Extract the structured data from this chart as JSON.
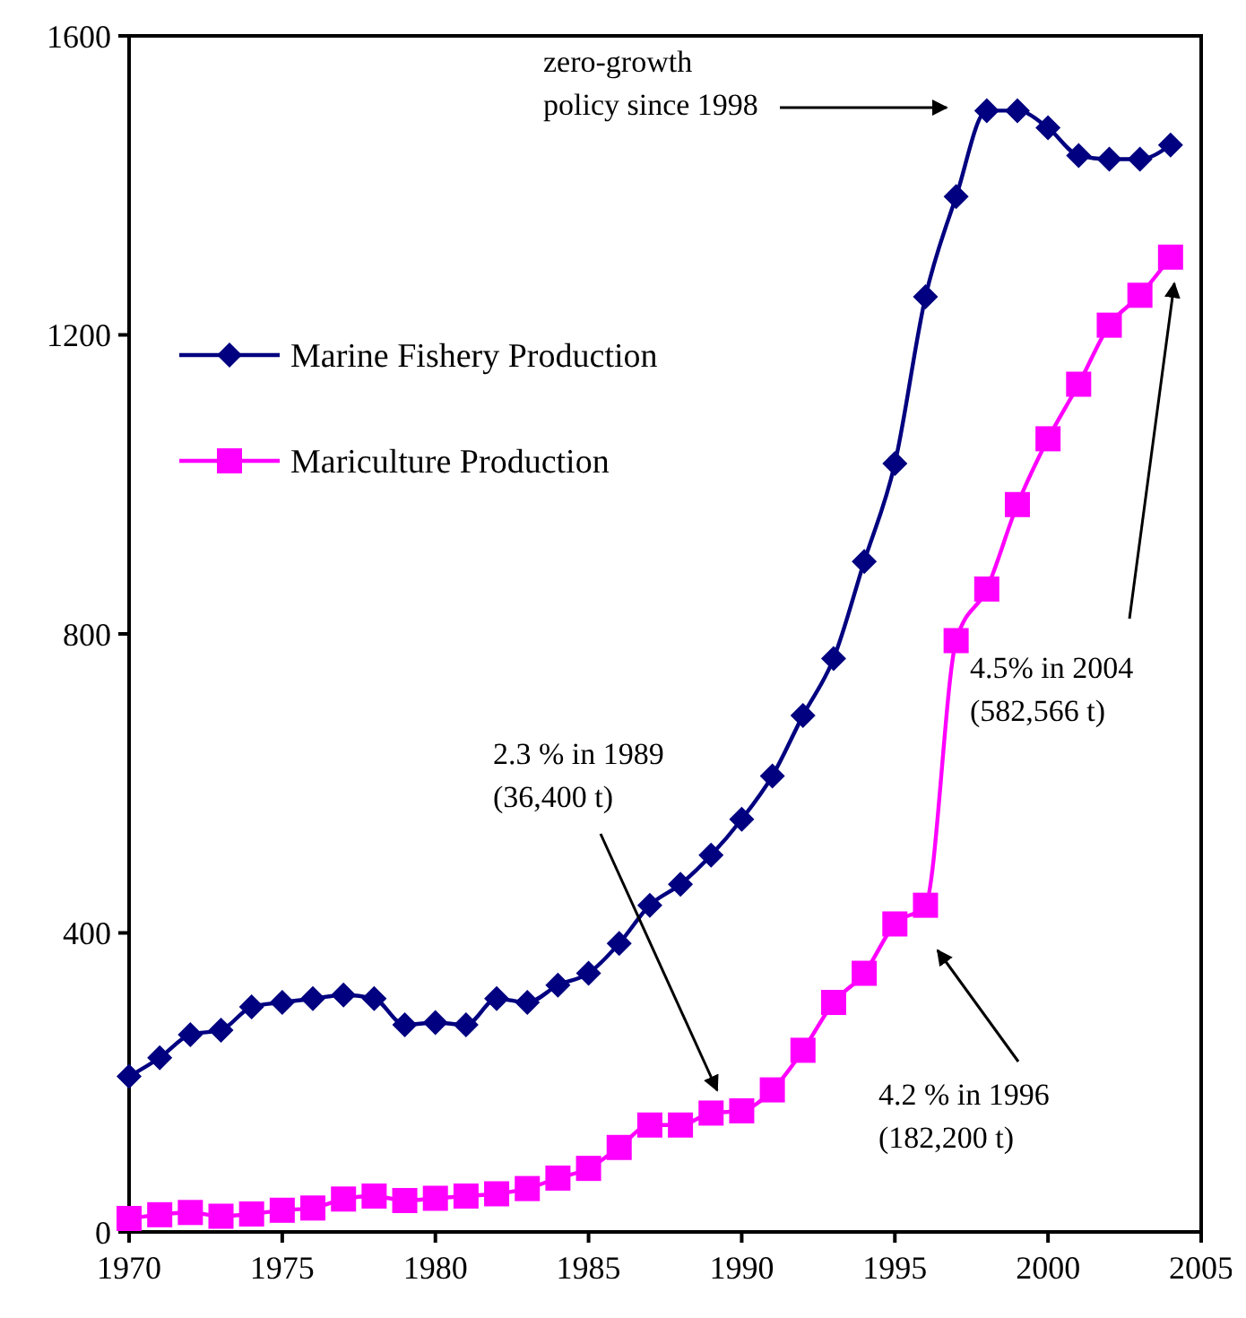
{
  "chart_data": {
    "type": "line",
    "x": [
      1970,
      1971,
      1972,
      1973,
      1974,
      1975,
      1976,
      1977,
      1978,
      1979,
      1980,
      1981,
      1982,
      1983,
      1984,
      1985,
      1986,
      1987,
      1988,
      1989,
      1990,
      1991,
      1992,
      1993,
      1994,
      1995,
      1996,
      1997,
      1998,
      1999,
      2000,
      2001,
      2002,
      2003,
      2004
    ],
    "xlim": [
      1970,
      2005
    ],
    "xticks": [
      1970,
      1975,
      1980,
      1985,
      1990,
      1995,
      2000,
      2005
    ],
    "ylim": [
      0,
      1600
    ],
    "yticks": [
      0,
      400,
      800,
      1200,
      1600
    ],
    "grid": false,
    "legend": "top left",
    "line_style": "solid",
    "series": [
      {
        "name": "Marine Fishery Production",
        "color": "#000080",
        "marker": "diamond",
        "values": [
          208,
          233,
          264,
          270,
          301,
          307,
          312,
          317,
          312,
          277,
          280,
          277,
          312,
          307,
          330,
          346,
          386,
          437,
          465,
          504,
          552,
          610,
          691,
          767,
          897,
          1028,
          1251,
          1385,
          1500,
          1500,
          1477,
          1440,
          1435,
          1435,
          1454
        ]
      },
      {
        "name": "Mariculture Production",
        "color": "#ff00ff",
        "marker": "square",
        "values": [
          18,
          23,
          26,
          21,
          24,
          29,
          32,
          44,
          48,
          42,
          45,
          48,
          51,
          58,
          72,
          85,
          113,
          143,
          143,
          159,
          162,
          190,
          243,
          307,
          346,
          412,
          437,
          791,
          860,
          973,
          1061,
          1134,
          1213,
          1253,
          1304
        ]
      }
    ],
    "annotations": [
      "zero-growth\npolicy since 1998",
      "2.3 % in 1989\n(36,400 t)",
      "4.2 % in 1996\n(182,200 t)",
      "4.5% in 2004\n(582,566 t)"
    ]
  }
}
